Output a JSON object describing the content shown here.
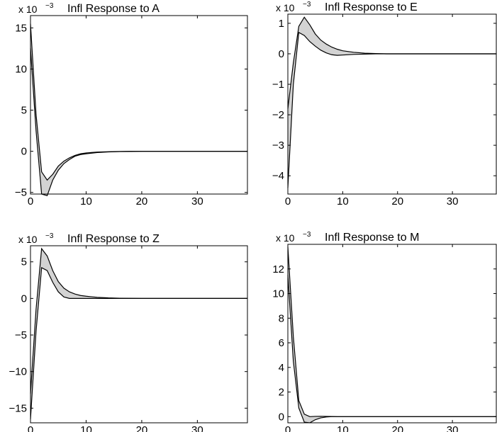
{
  "chart_data": [
    {
      "type": "area",
      "title": "Infl Response to A",
      "exponent_base": "x 10",
      "exponent_power": "−3",
      "xlim": [
        0,
        39
      ],
      "ylim": [
        -5.2,
        16.5
      ],
      "xticks": [
        0,
        10,
        20,
        30
      ],
      "yticks": [
        -5,
        0,
        5,
        10,
        15
      ],
      "ytick_labels": [
        "−5",
        "0",
        "5",
        "10",
        "15"
      ],
      "grid": false,
      "series": [
        {
          "x": [
            0,
            1,
            2,
            3,
            4,
            5,
            6,
            7,
            8,
            9,
            10,
            12,
            14,
            16,
            18,
            20,
            25,
            30,
            39
          ],
          "values": [
            15.5,
            4.5,
            -2.5,
            -3.5,
            -2.8,
            -1.8,
            -1.2,
            -0.8,
            -0.5,
            -0.3,
            -0.2,
            -0.1,
            -0.05,
            -0.02,
            0,
            0,
            0,
            0,
            0
          ]
        },
        {
          "x": [
            0,
            1,
            2,
            3,
            4,
            5,
            6,
            7,
            8,
            9,
            10,
            12,
            14,
            16,
            18,
            20,
            25,
            30,
            39
          ],
          "values": [
            12.5,
            2.5,
            -5.2,
            -5.4,
            -3.5,
            -2.3,
            -1.5,
            -1.0,
            -0.6,
            -0.4,
            -0.3,
            -0.15,
            -0.08,
            -0.04,
            -0.02,
            0,
            0,
            0,
            0
          ]
        }
      ]
    },
    {
      "type": "area",
      "title": "Infl Response to E",
      "exponent_base": "x 10",
      "exponent_power": "−3",
      "xlim": [
        0,
        38
      ],
      "ylim": [
        -4.6,
        1.3
      ],
      "xticks": [
        0,
        10,
        20,
        30
      ],
      "yticks": [
        -4,
        -3,
        -2,
        -1,
        0,
        1
      ],
      "ytick_labels": [
        "−4",
        "−3",
        "−2",
        "−1",
        "0",
        "1"
      ],
      "grid": false,
      "series": [
        {
          "x": [
            0,
            1,
            2,
            3,
            4,
            5,
            6,
            7,
            8,
            9,
            10,
            12,
            14,
            16,
            18,
            20,
            25,
            30,
            38
          ],
          "values": [
            -1.8,
            -0.3,
            0.9,
            1.2,
            0.95,
            0.65,
            0.45,
            0.32,
            0.22,
            0.15,
            0.1,
            0.05,
            0.02,
            0.01,
            0,
            0,
            0,
            0,
            0
          ]
        },
        {
          "x": [
            0,
            1,
            2,
            3,
            4,
            5,
            6,
            7,
            8,
            9,
            10,
            12,
            14,
            16,
            18,
            20,
            25,
            30,
            38
          ],
          "values": [
            -4.4,
            -1.0,
            0.7,
            0.6,
            0.4,
            0.25,
            0.12,
            0.03,
            -0.03,
            -0.05,
            -0.04,
            -0.02,
            -0.01,
            0,
            0,
            0,
            0,
            0,
            0
          ]
        }
      ]
    },
    {
      "type": "area",
      "title": "Infl Response to Z",
      "exponent_base": "x 10",
      "exponent_power": "−3",
      "xlim": [
        0,
        39
      ],
      "ylim": [
        -17,
        7.2
      ],
      "xticks": [
        0,
        10,
        20,
        30
      ],
      "yticks": [
        -15,
        -10,
        -5,
        0,
        5
      ],
      "ytick_labels": [
        "−15",
        "−10",
        "−5",
        "0",
        "5"
      ],
      "grid": false,
      "series": [
        {
          "x": [
            0,
            1,
            2,
            3,
            4,
            5,
            6,
            7,
            8,
            9,
            10,
            12,
            14,
            16,
            18,
            20,
            25,
            30,
            39
          ],
          "values": [
            -13,
            -1.5,
            6.8,
            5.8,
            3.8,
            2.3,
            1.4,
            0.9,
            0.6,
            0.4,
            0.3,
            0.15,
            0.07,
            0.03,
            0.01,
            0,
            0,
            0,
            0
          ]
        },
        {
          "x": [
            0,
            1,
            2,
            3,
            4,
            5,
            6,
            7,
            8,
            9,
            10,
            12,
            14,
            16,
            18,
            20,
            25,
            30,
            39
          ],
          "values": [
            -16.5,
            -4.5,
            4.2,
            3.8,
            2.2,
            0.9,
            0.2,
            0,
            0,
            0,
            0,
            0,
            0,
            0,
            0,
            0,
            0,
            0,
            0
          ]
        }
      ]
    },
    {
      "type": "area",
      "title": "Infl Response to M",
      "exponent_base": "x 10",
      "exponent_power": "−3",
      "xlim": [
        0,
        38
      ],
      "ylim": [
        -0.5,
        14
      ],
      "xticks": [
        0,
        10,
        20,
        30
      ],
      "yticks": [
        0,
        2,
        4,
        6,
        8,
        10,
        12
      ],
      "ytick_labels": [
        "0",
        "2",
        "4",
        "6",
        "8",
        "10",
        "12"
      ],
      "grid": false,
      "series": [
        {
          "x": [
            0,
            1,
            2,
            3,
            4,
            5,
            6,
            7,
            8,
            9,
            10,
            12,
            14,
            16,
            18,
            20,
            25,
            30,
            38
          ],
          "values": [
            13.8,
            6.5,
            1.3,
            0.2,
            0,
            0.02,
            0.03,
            0.02,
            0.01,
            0,
            0,
            0,
            0,
            0,
            0,
            0,
            0,
            0,
            0
          ]
        },
        {
          "x": [
            0,
            1,
            2,
            3,
            4,
            5,
            6,
            7,
            8,
            9,
            10,
            12,
            14,
            16,
            18,
            20,
            25,
            30,
            38
          ],
          "values": [
            11.5,
            4.5,
            0.7,
            -0.45,
            -0.5,
            -0.25,
            -0.1,
            -0.03,
            0,
            0,
            0,
            0,
            0,
            0,
            0,
            0,
            0,
            0,
            0
          ]
        }
      ]
    }
  ]
}
